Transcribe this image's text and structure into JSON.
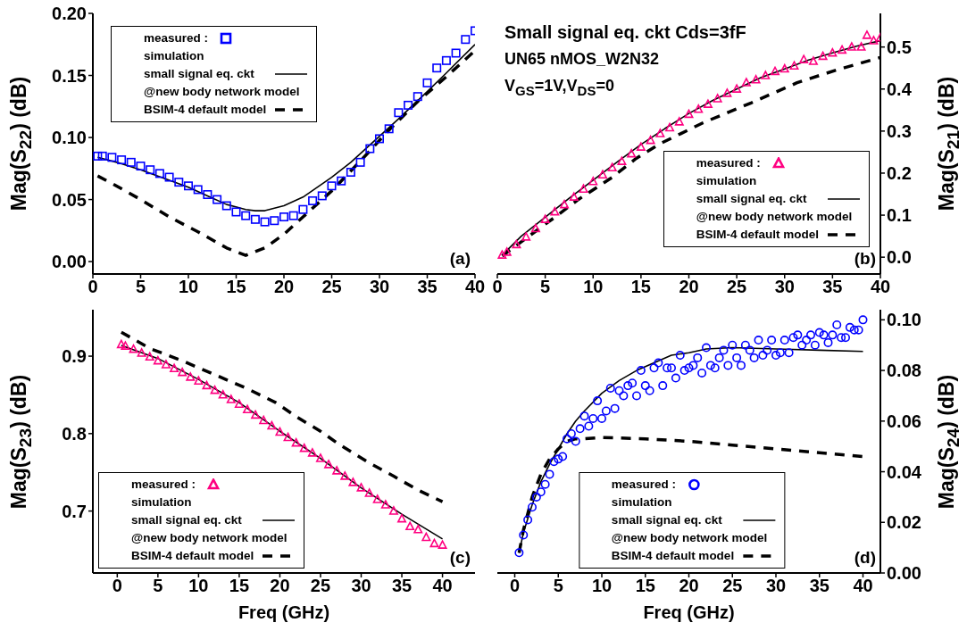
{
  "chart_data": [
    {
      "type": "line",
      "ylabel": "Mag(S$_{22}$) (dB)",
      "xlim": [
        0,
        40
      ],
      "xticks": [
        0,
        5,
        10,
        15,
        20,
        25,
        30,
        35,
        40
      ],
      "ylim": [
        -0.01,
        0.2
      ],
      "yticks": [
        {
          "value": 0,
          "label": "0.00"
        },
        {
          "value": 0.05,
          "label": "0.05"
        },
        {
          "value": 0.1,
          "label": "0.10"
        },
        {
          "value": 0.15,
          "label": "0.15"
        },
        {
          "value": 0.2,
          "label": "0.20"
        }
      ],
      "legend": "top left",
      "annotations": [
        "simulation",
        "@new body network model",
        "(a)"
      ],
      "series": [
        {
          "name": "measured :",
          "type": "scatter",
          "marker": "square",
          "color": "#0000ff",
          "x": [
            0.5,
            1,
            2,
            3,
            4,
            5,
            6,
            7,
            8,
            9,
            10,
            11,
            12,
            13,
            14,
            15,
            16,
            17,
            18,
            19,
            20,
            21,
            22,
            23,
            24,
            25,
            26,
            27,
            28,
            29,
            30,
            31,
            32,
            33,
            34,
            35,
            36,
            37,
            38,
            39,
            40
          ],
          "values": [
            0.085,
            0.085,
            0.084,
            0.082,
            0.08,
            0.077,
            0.074,
            0.071,
            0.068,
            0.064,
            0.061,
            0.058,
            0.054,
            0.05,
            0.045,
            0.04,
            0.037,
            0.034,
            0.032,
            0.033,
            0.036,
            0.037,
            0.042,
            0.049,
            0.053,
            0.061,
            0.065,
            0.072,
            0.08,
            0.091,
            0.099,
            0.107,
            0.12,
            0.126,
            0.133,
            0.144,
            0.156,
            0.162,
            0.168,
            0.179,
            0.186
          ]
        },
        {
          "name": "small signal eq. ckt",
          "type": "line",
          "line_style": "solid",
          "color": "#000000",
          "x": [
            0.5,
            2.5,
            5,
            7.5,
            10,
            12,
            14,
            16,
            17,
            18,
            20,
            22,
            25,
            27,
            30,
            32,
            35,
            37,
            40
          ],
          "values": [
            0.084,
            0.08,
            0.074,
            0.067,
            0.06,
            0.053,
            0.046,
            0.042,
            0.041,
            0.041,
            0.045,
            0.052,
            0.068,
            0.08,
            0.101,
            0.115,
            0.137,
            0.152,
            0.175
          ]
        },
        {
          "name": "BSIM-4 default model",
          "type": "line",
          "line_style": "dashed",
          "color": "#000000",
          "x": [
            0.5,
            2,
            5,
            8,
            11,
            14,
            16,
            18,
            20,
            22,
            25,
            28,
            31,
            34,
            37,
            40
          ],
          "values": [
            0.069,
            0.063,
            0.05,
            0.036,
            0.024,
            0.011,
            0.005,
            0.011,
            0.022,
            0.036,
            0.057,
            0.081,
            0.106,
            0.129,
            0.149,
            0.17
          ]
        }
      ]
    },
    {
      "type": "line",
      "title": "Small signal eq. ckt Cds=3fF",
      "subtitle": "UN65 nMOS_W2N32",
      "y2label": "Mag(S$_{21}$) (dB)",
      "xlim": [
        0,
        40
      ],
      "xticks": [
        0,
        5,
        10,
        15,
        20,
        25,
        30,
        35,
        40
      ],
      "y2lim": [
        -0.04,
        0.58
      ],
      "y2ticks": [
        {
          "value": 0,
          "label": "0.0"
        },
        {
          "value": 0.1,
          "label": "0.1"
        },
        {
          "value": 0.2,
          "label": "0.2"
        },
        {
          "value": 0.3,
          "label": "0.3"
        },
        {
          "value": 0.4,
          "label": "0.4"
        },
        {
          "value": 0.5,
          "label": "0.5"
        }
      ],
      "legend": "bottom right",
      "annotations": [
        "simulation",
        "@new body network model",
        "(b)",
        "V$_{GS}$=1V,V$_{DS}$=0"
      ],
      "series": [
        {
          "name": "measured :",
          "type": "scatter",
          "marker": "triangle",
          "axis": "y2",
          "color": "#ff0080",
          "x": [
            0.5,
            1,
            2,
            3,
            4,
            5,
            6,
            7,
            8,
            9,
            10,
            11,
            12,
            13,
            14,
            15,
            16,
            17,
            18,
            19,
            20,
            21,
            22,
            23,
            24,
            25,
            26,
            27,
            28,
            29,
            30,
            31,
            32,
            33,
            34,
            35,
            36,
            37,
            38,
            38.6,
            39.3,
            40
          ],
          "values": [
            0.005,
            0.012,
            0.03,
            0.048,
            0.068,
            0.09,
            0.108,
            0.125,
            0.143,
            0.162,
            0.18,
            0.196,
            0.213,
            0.228,
            0.246,
            0.262,
            0.278,
            0.294,
            0.308,
            0.322,
            0.34,
            0.352,
            0.364,
            0.377,
            0.39,
            0.4,
            0.415,
            0.422,
            0.432,
            0.442,
            0.448,
            0.455,
            0.47,
            0.466,
            0.478,
            0.486,
            0.493,
            0.5,
            0.5,
            0.528,
            0.515,
            0.522
          ]
        },
        {
          "name": "small signal eq. ckt",
          "type": "line",
          "line_style": "solid",
          "axis": "y2",
          "color": "#000000",
          "x": [
            0.5,
            2.5,
            5,
            7.5,
            10,
            12.5,
            15,
            17.5,
            20,
            22.5,
            25,
            27.5,
            30,
            32.5,
            35,
            37.5,
            40
          ],
          "values": [
            0.005,
            0.05,
            0.095,
            0.14,
            0.183,
            0.226,
            0.268,
            0.306,
            0.342,
            0.373,
            0.4,
            0.427,
            0.448,
            0.469,
            0.486,
            0.502,
            0.515
          ]
        },
        {
          "name": "BSIM-4 default model",
          "type": "line",
          "line_style": "dashed",
          "axis": "y2",
          "color": "#000000",
          "x": [
            0.5,
            3,
            6,
            8.5,
            12,
            14.5,
            17,
            21.5,
            26.5,
            31.3,
            35.5,
            40
          ],
          "values": [
            0.003,
            0.045,
            0.095,
            0.138,
            0.19,
            0.235,
            0.27,
            0.32,
            0.367,
            0.415,
            0.446,
            0.475
          ]
        }
      ]
    },
    {
      "type": "line",
      "xlabel": "Freq (GHz)",
      "ylabel": "Mag(S$_{23}$) (dB)",
      "xlim": [
        -3,
        44
      ],
      "xticks": [
        0,
        5,
        10,
        15,
        20,
        25,
        30,
        35,
        40
      ],
      "ylim": [
        0.62,
        0.96
      ],
      "yticks": [
        0.7,
        0.8,
        0.9
      ],
      "legend": "bottom left",
      "annotations": [
        "simulation",
        "@new body network model",
        "(c)"
      ],
      "series": [
        {
          "name": "measured :",
          "type": "scatter",
          "marker": "triangle",
          "color": "#ff0080",
          "x": [
            0.5,
            1,
            2,
            3,
            4,
            5,
            6,
            7,
            8,
            9,
            10,
            11,
            12,
            13,
            14,
            15,
            16,
            17,
            18,
            19,
            20,
            21,
            22,
            23,
            24,
            25,
            26,
            27,
            28,
            29,
            30,
            31,
            32,
            33,
            34,
            35,
            36,
            37,
            38,
            39,
            40
          ],
          "values": [
            0.915,
            0.913,
            0.909,
            0.904,
            0.899,
            0.894,
            0.889,
            0.884,
            0.879,
            0.873,
            0.868,
            0.862,
            0.856,
            0.85,
            0.844,
            0.838,
            0.831,
            0.824,
            0.817,
            0.81,
            0.802,
            0.795,
            0.788,
            0.781,
            0.775,
            0.768,
            0.76,
            0.752,
            0.745,
            0.737,
            0.73,
            0.723,
            0.715,
            0.708,
            0.7,
            0.69,
            0.68,
            0.676,
            0.666,
            0.658,
            0.656
          ]
        },
        {
          "name": "small signal eq. ckt",
          "type": "line",
          "line_style": "solid",
          "color": "#000000",
          "x": [
            0.5,
            5,
            10,
            15,
            20,
            25,
            30,
            35,
            40
          ],
          "values": [
            0.914,
            0.897,
            0.87,
            0.84,
            0.803,
            0.768,
            0.73,
            0.696,
            0.664
          ]
        },
        {
          "name": "BSIM-4 default model",
          "type": "line",
          "line_style": "dashed",
          "color": "#000000",
          "x": [
            0.5,
            4,
            8,
            12,
            16,
            19.5,
            22,
            25,
            27.3,
            31,
            34,
            37,
            40
          ],
          "values": [
            0.931,
            0.91,
            0.894,
            0.876,
            0.858,
            0.84,
            0.822,
            0.803,
            0.786,
            0.762,
            0.745,
            0.727,
            0.712
          ]
        }
      ]
    },
    {
      "type": "line",
      "xlabel": "Freq (GHz)",
      "y2label": "Mag(S$_{24}$) (dB)",
      "xlim": [
        -2,
        42
      ],
      "xticks": [
        0,
        5,
        10,
        15,
        20,
        25,
        30,
        35,
        40
      ],
      "y2lim": [
        0,
        0.104
      ],
      "y2ticks": [
        {
          "value": 0,
          "label": "0.00"
        },
        {
          "value": 0.02,
          "label": "0.02"
        },
        {
          "value": 0.04,
          "label": "0.04"
        },
        {
          "value": 0.06,
          "label": "0.06"
        },
        {
          "value": 0.08,
          "label": "0.08"
        },
        {
          "value": 0.1,
          "label": "0.10"
        }
      ],
      "legend": "bottom",
      "annotations": [
        "simulation",
        "@new body network model",
        "(d)"
      ],
      "series": [
        {
          "name": "measured :",
          "type": "scatter",
          "marker": "circle",
          "axis": "y2",
          "color": "#0000ff",
          "x": [
            0.5,
            1,
            1.5,
            2,
            2.5,
            3,
            3.5,
            4,
            4.5,
            5,
            5.5,
            6,
            6.5,
            7,
            7.5,
            8,
            8.5,
            9,
            9.5,
            10,
            10.5,
            11,
            11.5,
            12,
            12.5,
            13,
            13.5,
            14,
            14.5,
            15,
            15.5,
            16,
            16.5,
            17,
            17.5,
            18,
            18.5,
            19,
            19.5,
            20,
            20.5,
            21,
            21.5,
            22,
            22.5,
            23,
            23.5,
            24,
            24.5,
            25,
            25.5,
            26,
            26.5,
            27,
            27.5,
            28,
            28.5,
            29,
            29.5,
            30,
            30.5,
            31,
            31.5,
            32,
            32.5,
            33,
            33.5,
            34,
            34.5,
            35,
            35.5,
            36,
            36.5,
            37,
            37.5,
            38,
            38.5,
            39,
            39.5,
            40
          ],
          "values": [
            0.008,
            0.015,
            0.021,
            0.026,
            0.03,
            0.032,
            0.035,
            0.039,
            0.044,
            0.045,
            0.046,
            0.053,
            0.055,
            0.052,
            0.057,
            0.062,
            0.058,
            0.061,
            0.068,
            0.061,
            0.064,
            0.073,
            0.065,
            0.072,
            0.07,
            0.074,
            0.075,
            0.07,
            0.08,
            0.074,
            0.072,
            0.081,
            0.083,
            0.074,
            0.081,
            0.081,
            0.077,
            0.086,
            0.08,
            0.081,
            0.082,
            0.085,
            0.079,
            0.089,
            0.082,
            0.081,
            0.085,
            0.088,
            0.082,
            0.09,
            0.085,
            0.082,
            0.09,
            0.088,
            0.085,
            0.092,
            0.086,
            0.088,
            0.092,
            0.086,
            0.087,
            0.092,
            0.087,
            0.093,
            0.094,
            0.09,
            0.092,
            0.094,
            0.09,
            0.095,
            0.094,
            0.091,
            0.094,
            0.098,
            0.093,
            0.093,
            0.097,
            0.096,
            0.096,
            0.1
          ]
        },
        {
          "name": "small signal eq. ckt",
          "type": "line",
          "line_style": "solid",
          "axis": "y2",
          "color": "#000000",
          "x": [
            0.5,
            1,
            2,
            3,
            4,
            5,
            6,
            7,
            8,
            10,
            12,
            14,
            16,
            18,
            20,
            22,
            25,
            30,
            35,
            40
          ],
          "values": [
            0.008,
            0.016,
            0.027,
            0.036,
            0.043,
            0.049,
            0.055,
            0.06,
            0.064,
            0.071,
            0.076,
            0.08,
            0.083,
            0.086,
            0.087,
            0.0885,
            0.089,
            0.0885,
            0.088,
            0.0875
          ]
        },
        {
          "name": "BSIM-4 default model",
          "type": "line",
          "line_style": "dashed",
          "axis": "y2",
          "color": "#000000",
          "x": [
            0.5,
            1,
            2,
            3,
            4,
            5,
            6,
            7,
            8,
            10,
            15,
            20,
            25,
            30,
            35,
            40
          ],
          "values": [
            0.008,
            0.017,
            0.03,
            0.039,
            0.045,
            0.049,
            0.052,
            0.053,
            0.053,
            0.0535,
            0.053,
            0.052,
            0.0505,
            0.049,
            0.0475,
            0.046
          ]
        }
      ]
    }
  ]
}
